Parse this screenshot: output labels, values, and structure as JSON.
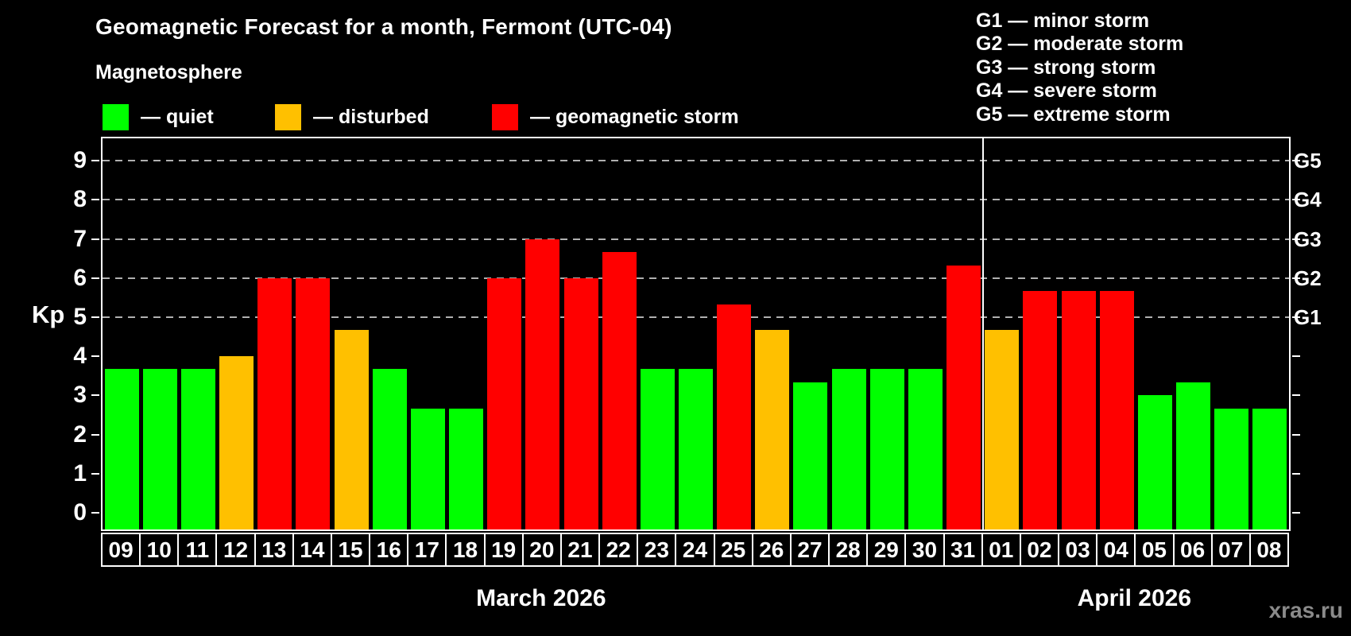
{
  "title": "Geomagnetic Forecast for a month, Fermont (UTC-04)",
  "subtitle": "Magnetosphere",
  "colors": {
    "quiet": "#00ff00",
    "disturbed": "#ffc000",
    "storm": "#ff0000",
    "background": "#000000",
    "text": "#ffffff",
    "gridline": "#b0b0b0",
    "watermark": "#8a8a8a"
  },
  "legend": {
    "items": [
      {
        "key": "quiet",
        "label": "— quiet"
      },
      {
        "key": "disturbed",
        "label": "— disturbed"
      },
      {
        "key": "storm",
        "label": "— geomagnetic storm"
      }
    ]
  },
  "storm_scale_legend": [
    "G1 — minor storm",
    "G2 — moderate storm",
    "G3 — strong storm",
    "G4 — severe storm",
    "G5 — extreme storm"
  ],
  "watermark": "xras.ru",
  "chart_data": {
    "type": "bar",
    "title": "Geomagnetic Forecast for a month, Fermont (UTC-04)",
    "ylabel": "Kp",
    "ylim": [
      0,
      9.4
    ],
    "yticks": [
      0,
      1,
      2,
      3,
      4,
      5,
      6,
      7,
      8,
      9
    ],
    "gridlines_at": [
      5,
      6,
      7,
      8,
      9
    ],
    "right_axis_labels": [
      {
        "value": 5,
        "label": "G1"
      },
      {
        "value": 6,
        "label": "G2"
      },
      {
        "value": 7,
        "label": "G3"
      },
      {
        "value": 8,
        "label": "G4"
      },
      {
        "value": 9,
        "label": "G5"
      }
    ],
    "grid": true,
    "legend_position": "top",
    "categories": [
      "09",
      "10",
      "11",
      "12",
      "13",
      "14",
      "15",
      "16",
      "17",
      "18",
      "19",
      "20",
      "21",
      "22",
      "23",
      "24",
      "25",
      "26",
      "27",
      "28",
      "29",
      "30",
      "31",
      "01",
      "02",
      "03",
      "04",
      "05",
      "06",
      "07",
      "08"
    ],
    "values": [
      3.67,
      3.67,
      3.67,
      4.0,
      6.0,
      6.0,
      4.67,
      3.67,
      2.67,
      2.67,
      6.0,
      7.0,
      6.0,
      6.67,
      3.67,
      3.67,
      5.33,
      4.67,
      3.33,
      3.67,
      3.67,
      3.67,
      6.33,
      4.67,
      5.67,
      5.67,
      5.67,
      3.0,
      3.33,
      2.67,
      2.67
    ],
    "statuses": [
      "quiet",
      "quiet",
      "quiet",
      "disturbed",
      "storm",
      "storm",
      "disturbed",
      "quiet",
      "quiet",
      "quiet",
      "storm",
      "storm",
      "storm",
      "storm",
      "quiet",
      "quiet",
      "storm",
      "disturbed",
      "quiet",
      "quiet",
      "quiet",
      "quiet",
      "storm",
      "disturbed",
      "storm",
      "storm",
      "storm",
      "quiet",
      "quiet",
      "quiet",
      "quiet"
    ],
    "months": [
      {
        "label": "March 2026",
        "count": 23
      },
      {
        "label": "April 2026",
        "count": 8
      }
    ]
  }
}
